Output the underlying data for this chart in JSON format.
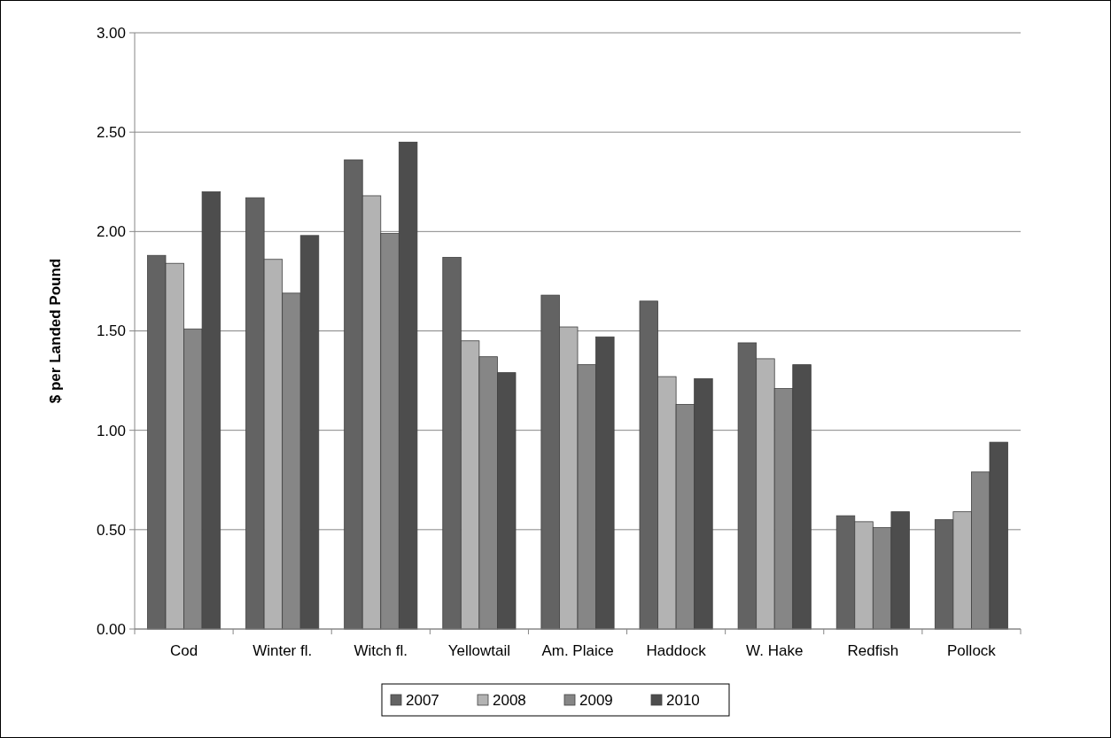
{
  "chart_data": {
    "type": "bar",
    "ylabel": "$ per Landed Pound",
    "categories": [
      "Cod",
      "Winter fl.",
      "Witch fl.",
      "Yellowtail",
      "Am. Plaice",
      "Haddock",
      "W. Hake",
      "Redfish",
      "Pollock"
    ],
    "series": [
      {
        "name": "2007",
        "color": "#636363",
        "values": [
          1.88,
          2.17,
          2.36,
          1.87,
          1.68,
          1.65,
          1.44,
          0.57,
          0.55
        ]
      },
      {
        "name": "2008",
        "color": "#b3b3b3",
        "values": [
          1.84,
          1.86,
          2.18,
          1.45,
          1.52,
          1.27,
          1.36,
          0.54,
          0.59
        ]
      },
      {
        "name": "2009",
        "color": "#868686",
        "values": [
          1.51,
          1.69,
          1.99,
          1.37,
          1.33,
          1.13,
          1.21,
          0.51,
          0.79
        ]
      },
      {
        "name": "2010",
        "color": "#4d4d4d",
        "values": [
          2.2,
          1.98,
          2.45,
          1.29,
          1.47,
          1.26,
          1.33,
          0.59,
          0.94
        ]
      }
    ],
    "ylim": [
      0,
      3
    ],
    "yticks": [
      {
        "value": 0,
        "label": "0.00"
      },
      {
        "value": 0.5,
        "label": "0.50"
      },
      {
        "value": 1,
        "label": "1.00"
      },
      {
        "value": 1.5,
        "label": "1.50"
      },
      {
        "value": 2,
        "label": "2.00"
      },
      {
        "value": 2.5,
        "label": "2.50"
      },
      {
        "value": 3,
        "label": "3.00"
      }
    ],
    "grid": "y",
    "legend": "bottom"
  }
}
